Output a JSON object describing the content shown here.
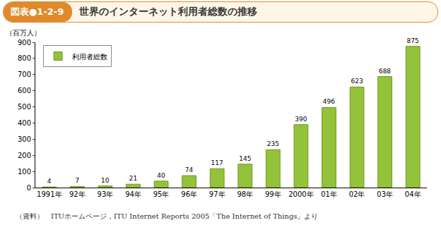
{
  "chart_data": {
    "type": "bar",
    "figure_label": "図表●1-2-9",
    "title": "世界のインターネット利用者総数の推移",
    "y_label": "（百万人）",
    "source": "（資料）　ITUホームページ，ITU Internet Reports 2005「The Internet of Things」より",
    "categories": [
      "1991年",
      "92年",
      "93年",
      "94年",
      "95年",
      "96年",
      "97年",
      "98年",
      "99年",
      "2000年",
      "01年",
      "02年",
      "03年",
      "04年"
    ],
    "series": [
      {
        "name": "利用者総数",
        "color": "#94c23a",
        "values": [
          4,
          7,
          10,
          21,
          40,
          74,
          117,
          145,
          235,
          390,
          496,
          623,
          688,
          875
        ]
      }
    ],
    "ylim": [
      0,
      900
    ],
    "yticks": [
      0,
      100,
      200,
      300,
      400,
      500,
      600,
      700,
      800,
      900
    ],
    "grid": false,
    "legend": "top-left",
    "data_labels": true
  }
}
